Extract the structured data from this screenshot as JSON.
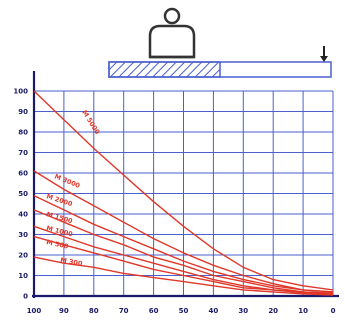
{
  "chart_data": {
    "type": "line",
    "title": "",
    "xlabel": "",
    "ylabel": "",
    "xlim": [
      100,
      0
    ],
    "ylim": [
      0,
      100
    ],
    "x_ticks": [
      100,
      90,
      80,
      70,
      60,
      50,
      40,
      30,
      20,
      10,
      0
    ],
    "y_ticks": [
      0,
      10,
      20,
      30,
      40,
      50,
      60,
      70,
      80,
      90,
      100
    ],
    "grid": true,
    "colors": {
      "grid": "#4b5fcf",
      "axis": "#1a1a6a",
      "series": "#e0382a"
    },
    "series": [
      {
        "name": "M 5000",
        "values": [
          [
            100,
            100
          ],
          [
            90,
            86
          ],
          [
            80,
            72
          ],
          [
            70,
            59
          ],
          [
            60,
            46
          ],
          [
            50,
            34
          ],
          [
            40,
            23
          ],
          [
            30,
            14
          ],
          [
            20,
            8
          ],
          [
            10,
            5
          ],
          [
            0,
            3
          ]
        ]
      },
      {
        "name": "M 3000",
        "values": [
          [
            100,
            61
          ],
          [
            90,
            52
          ],
          [
            80,
            44
          ],
          [
            70,
            36
          ],
          [
            60,
            28
          ],
          [
            50,
            21
          ],
          [
            40,
            15
          ],
          [
            30,
            10
          ],
          [
            20,
            6
          ],
          [
            10,
            3
          ],
          [
            0,
            2
          ]
        ]
      },
      {
        "name": "M 2000",
        "values": [
          [
            100,
            49
          ],
          [
            90,
            42
          ],
          [
            80,
            35
          ],
          [
            70,
            29
          ],
          [
            60,
            23
          ],
          [
            50,
            17
          ],
          [
            40,
            12
          ],
          [
            30,
            8
          ],
          [
            20,
            5
          ],
          [
            10,
            3
          ],
          [
            0,
            2
          ]
        ]
      },
      {
        "name": "M 1500",
        "values": [
          [
            100,
            42
          ],
          [
            90,
            36
          ],
          [
            80,
            30
          ],
          [
            70,
            25
          ],
          [
            60,
            19
          ],
          [
            50,
            15
          ],
          [
            40,
            10
          ],
          [
            30,
            7
          ],
          [
            20,
            4
          ],
          [
            10,
            2
          ],
          [
            0,
            1.5
          ]
        ]
      },
      {
        "name": "M 1000",
        "values": [
          [
            100,
            34
          ],
          [
            90,
            29
          ],
          [
            80,
            24
          ],
          [
            70,
            20
          ],
          [
            60,
            16
          ],
          [
            50,
            12
          ],
          [
            40,
            8
          ],
          [
            30,
            5
          ],
          [
            20,
            3
          ],
          [
            10,
            2
          ],
          [
            0,
            1
          ]
        ]
      },
      {
        "name": "M 500",
        "values": [
          [
            100,
            29
          ],
          [
            90,
            25
          ],
          [
            80,
            21
          ],
          [
            70,
            17
          ],
          [
            60,
            13
          ],
          [
            50,
            10
          ],
          [
            40,
            7
          ],
          [
            30,
            4
          ],
          [
            20,
            3
          ],
          [
            10,
            1.5
          ],
          [
            0,
            1
          ]
        ]
      },
      {
        "name": "M 300",
        "values": [
          [
            100,
            19
          ],
          [
            90,
            16
          ],
          [
            80,
            14
          ],
          [
            70,
            11
          ],
          [
            60,
            9
          ],
          [
            50,
            7
          ],
          [
            40,
            5
          ],
          [
            30,
            3
          ],
          [
            20,
            2
          ],
          [
            10,
            1
          ],
          [
            0,
            0.5
          ]
        ]
      }
    ]
  },
  "diagram": {
    "icons": [
      "lifting-magnet-icon",
      "down-arrow-icon"
    ],
    "load_bar_filled_fraction": 0.5
  }
}
